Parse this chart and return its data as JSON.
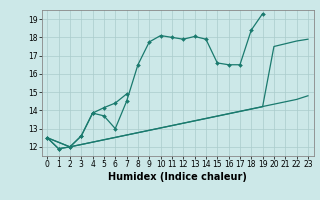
{
  "title": "",
  "xlabel": "Humidex (Indice chaleur)",
  "bg_color": "#cce8e8",
  "grid_color": "#aacccc",
  "line_color": "#1a7a6e",
  "xlim": [
    -0.5,
    23.5
  ],
  "ylim": [
    11.5,
    19.5
  ],
  "xticks": [
    0,
    1,
    2,
    3,
    4,
    5,
    6,
    7,
    8,
    9,
    10,
    11,
    12,
    13,
    14,
    15,
    16,
    17,
    18,
    19,
    20,
    21,
    22,
    23
  ],
  "yticks": [
    12,
    13,
    14,
    15,
    16,
    17,
    18,
    19
  ],
  "line1_x": [
    0,
    1,
    2,
    3,
    4,
    5,
    6,
    7,
    8,
    9,
    10,
    11,
    12,
    13,
    14,
    15,
    16,
    17,
    18,
    19
  ],
  "line1_y": [
    12.5,
    11.9,
    12.0,
    12.6,
    13.85,
    13.7,
    13.0,
    14.5,
    16.5,
    17.75,
    18.1,
    18.0,
    17.9,
    18.05,
    17.9,
    16.6,
    16.5,
    16.5,
    18.4,
    19.3
  ],
  "line2_x": [
    0,
    1,
    2,
    3,
    4,
    5,
    6,
    7
  ],
  "line2_y": [
    12.5,
    11.9,
    12.0,
    12.6,
    13.85,
    14.15,
    14.4,
    14.9
  ],
  "line3_x": [
    0,
    2,
    19,
    20,
    21,
    22,
    23
  ],
  "line3_y": [
    12.5,
    12.0,
    14.2,
    17.5,
    17.65,
    17.8,
    17.9
  ],
  "line4_x": [
    0,
    2,
    22,
    23
  ],
  "line4_y": [
    12.5,
    12.0,
    14.6,
    14.8
  ],
  "xlabel_fontsize": 7,
  "tick_fontsize": 5.5
}
